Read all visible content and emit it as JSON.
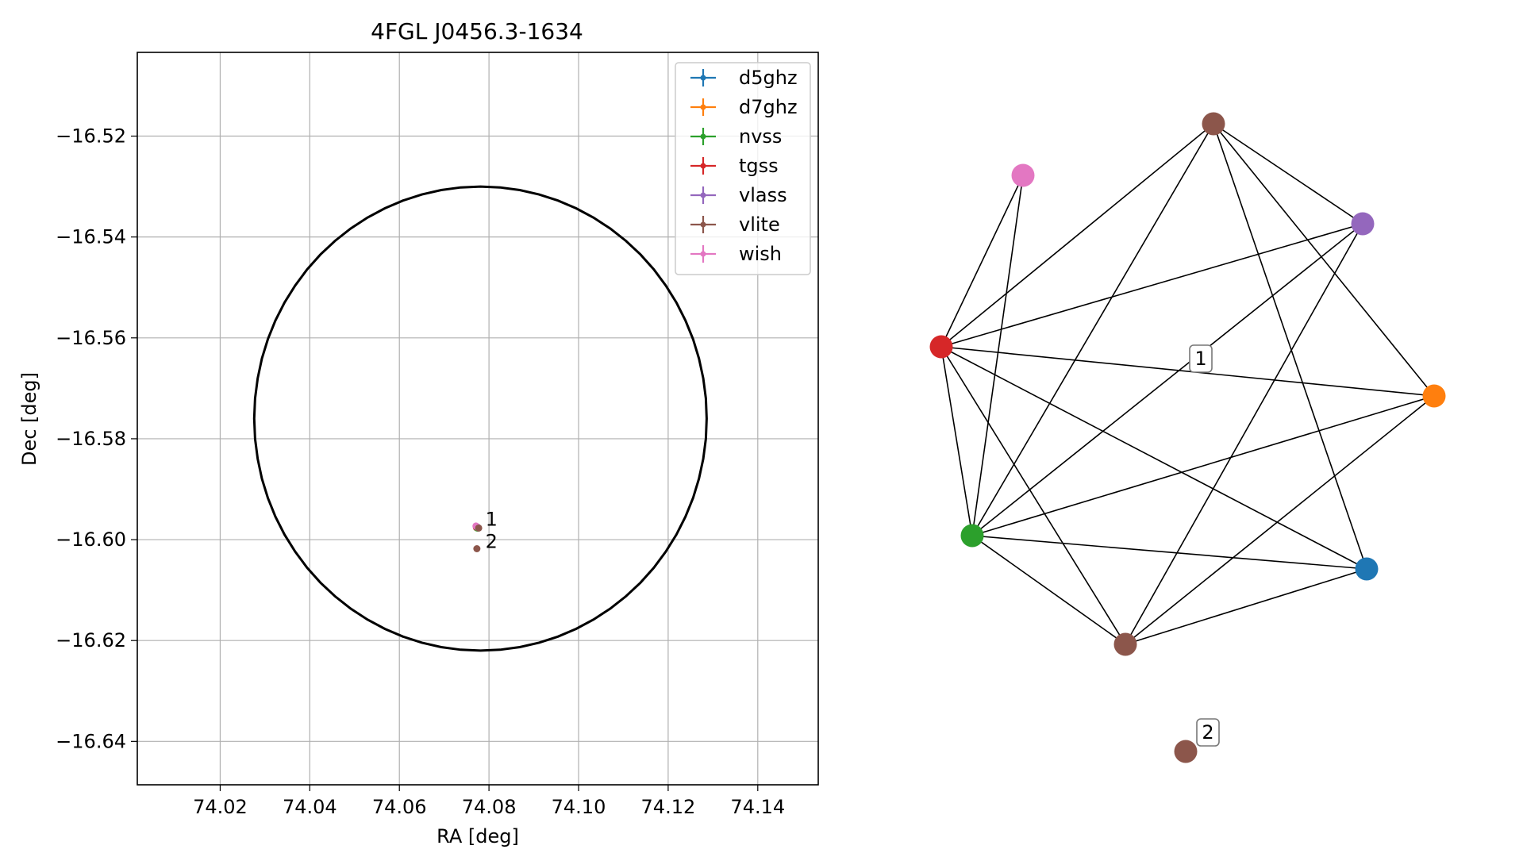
{
  "chart_data": [
    {
      "type": "scatter",
      "title": "4FGL J0456.3-1634",
      "xlabel": "RA [deg]",
      "ylabel": "Dec [deg]",
      "xlim": [
        74.0015,
        74.1535
      ],
      "ylim": [
        -16.6486,
        -16.5034
      ],
      "x_ticks": [
        74.02,
        74.04,
        74.06,
        74.08,
        74.1,
        74.12,
        74.14
      ],
      "x_tick_labels": [
        "74.02",
        "74.04",
        "74.06",
        "74.08",
        "74.10",
        "74.12",
        "74.14"
      ],
      "y_ticks": [
        -16.52,
        -16.54,
        -16.56,
        -16.58,
        -16.6,
        -16.62,
        -16.64
      ],
      "y_tick_labels": [
        "−16.52",
        "−16.54",
        "−16.56",
        "−16.58",
        "−16.60",
        "−16.62",
        "−16.64"
      ],
      "grid": true,
      "legend_position": "top-right",
      "legend": [
        {
          "name": "d5ghz",
          "color": "#1f77b4"
        },
        {
          "name": "d7ghz",
          "color": "#ff7f0e"
        },
        {
          "name": "nvss",
          "color": "#2ca02c"
        },
        {
          "name": "tgss",
          "color": "#d62728"
        },
        {
          "name": "vlass",
          "color": "#9467bd"
        },
        {
          "name": "vlite",
          "color": "#8c564b"
        },
        {
          "name": "wish",
          "color": "#e377c2"
        }
      ],
      "uncertainty_ellipse": {
        "ra_center": 74.0781,
        "dec_center": -16.576,
        "ra_halfwidth": 0.0505,
        "dec_halfheight": 0.046
      },
      "points": [
        {
          "series": "tgss",
          "ra": 74.0772,
          "dec": -16.5976
        },
        {
          "series": "nvss",
          "ra": 74.0774,
          "dec": -16.5977
        },
        {
          "series": "d5ghz",
          "ra": 74.0775,
          "dec": -16.5976
        },
        {
          "series": "d7ghz",
          "ra": 74.0775,
          "dec": -16.5976
        },
        {
          "series": "vlass",
          "ra": 74.0774,
          "dec": -16.5975
        },
        {
          "series": "wish",
          "ra": 74.0771,
          "dec": -16.5973
        },
        {
          "series": "vlite",
          "ra": 74.0777,
          "dec": -16.5977
        },
        {
          "series": "vlite",
          "ra": 74.0773,
          "dec": -16.6018
        }
      ],
      "annotations": [
        {
          "text": "1",
          "ra": 74.0792,
          "dec": -16.596
        },
        {
          "text": "2",
          "ra": 74.0792,
          "dec": -16.6004
        }
      ]
    },
    {
      "type": "network",
      "nodes": [
        {
          "id": "vlite_a",
          "series": "vlite",
          "color": "#8c564b"
        },
        {
          "id": "wish",
          "series": "wish",
          "color": "#e377c2"
        },
        {
          "id": "vlass",
          "series": "vlass",
          "color": "#9467bd"
        },
        {
          "id": "tgss",
          "series": "tgss",
          "color": "#d62728"
        },
        {
          "id": "d7ghz",
          "series": "d7ghz",
          "color": "#ff7f0e"
        },
        {
          "id": "nvss",
          "series": "nvss",
          "color": "#2ca02c"
        },
        {
          "id": "d5ghz",
          "series": "d5ghz",
          "color": "#1f77b4"
        },
        {
          "id": "vlite_b",
          "series": "vlite",
          "color": "#8c564b"
        },
        {
          "id": "vlite_c",
          "series": "vlite",
          "color": "#8c564b"
        }
      ],
      "edges": [
        [
          "wish",
          "tgss"
        ],
        [
          "wish",
          "nvss"
        ],
        [
          "vlite_a",
          "tgss"
        ],
        [
          "vlite_a",
          "nvss"
        ],
        [
          "vlite_a",
          "vlass"
        ],
        [
          "vlite_a",
          "d7ghz"
        ],
        [
          "vlite_a",
          "d5ghz"
        ],
        [
          "tgss",
          "vlass"
        ],
        [
          "tgss",
          "d7ghz"
        ],
        [
          "tgss",
          "nvss"
        ],
        [
          "tgss",
          "d5ghz"
        ],
        [
          "tgss",
          "vlite_b"
        ],
        [
          "vlass",
          "nvss"
        ],
        [
          "vlass",
          "vlite_b"
        ],
        [
          "d7ghz",
          "nvss"
        ],
        [
          "d7ghz",
          "vlite_b"
        ],
        [
          "nvss",
          "d5ghz"
        ],
        [
          "nvss",
          "vlite_b"
        ],
        [
          "d5ghz",
          "vlite_b"
        ]
      ],
      "group_labels": [
        "1",
        "2"
      ]
    }
  ]
}
